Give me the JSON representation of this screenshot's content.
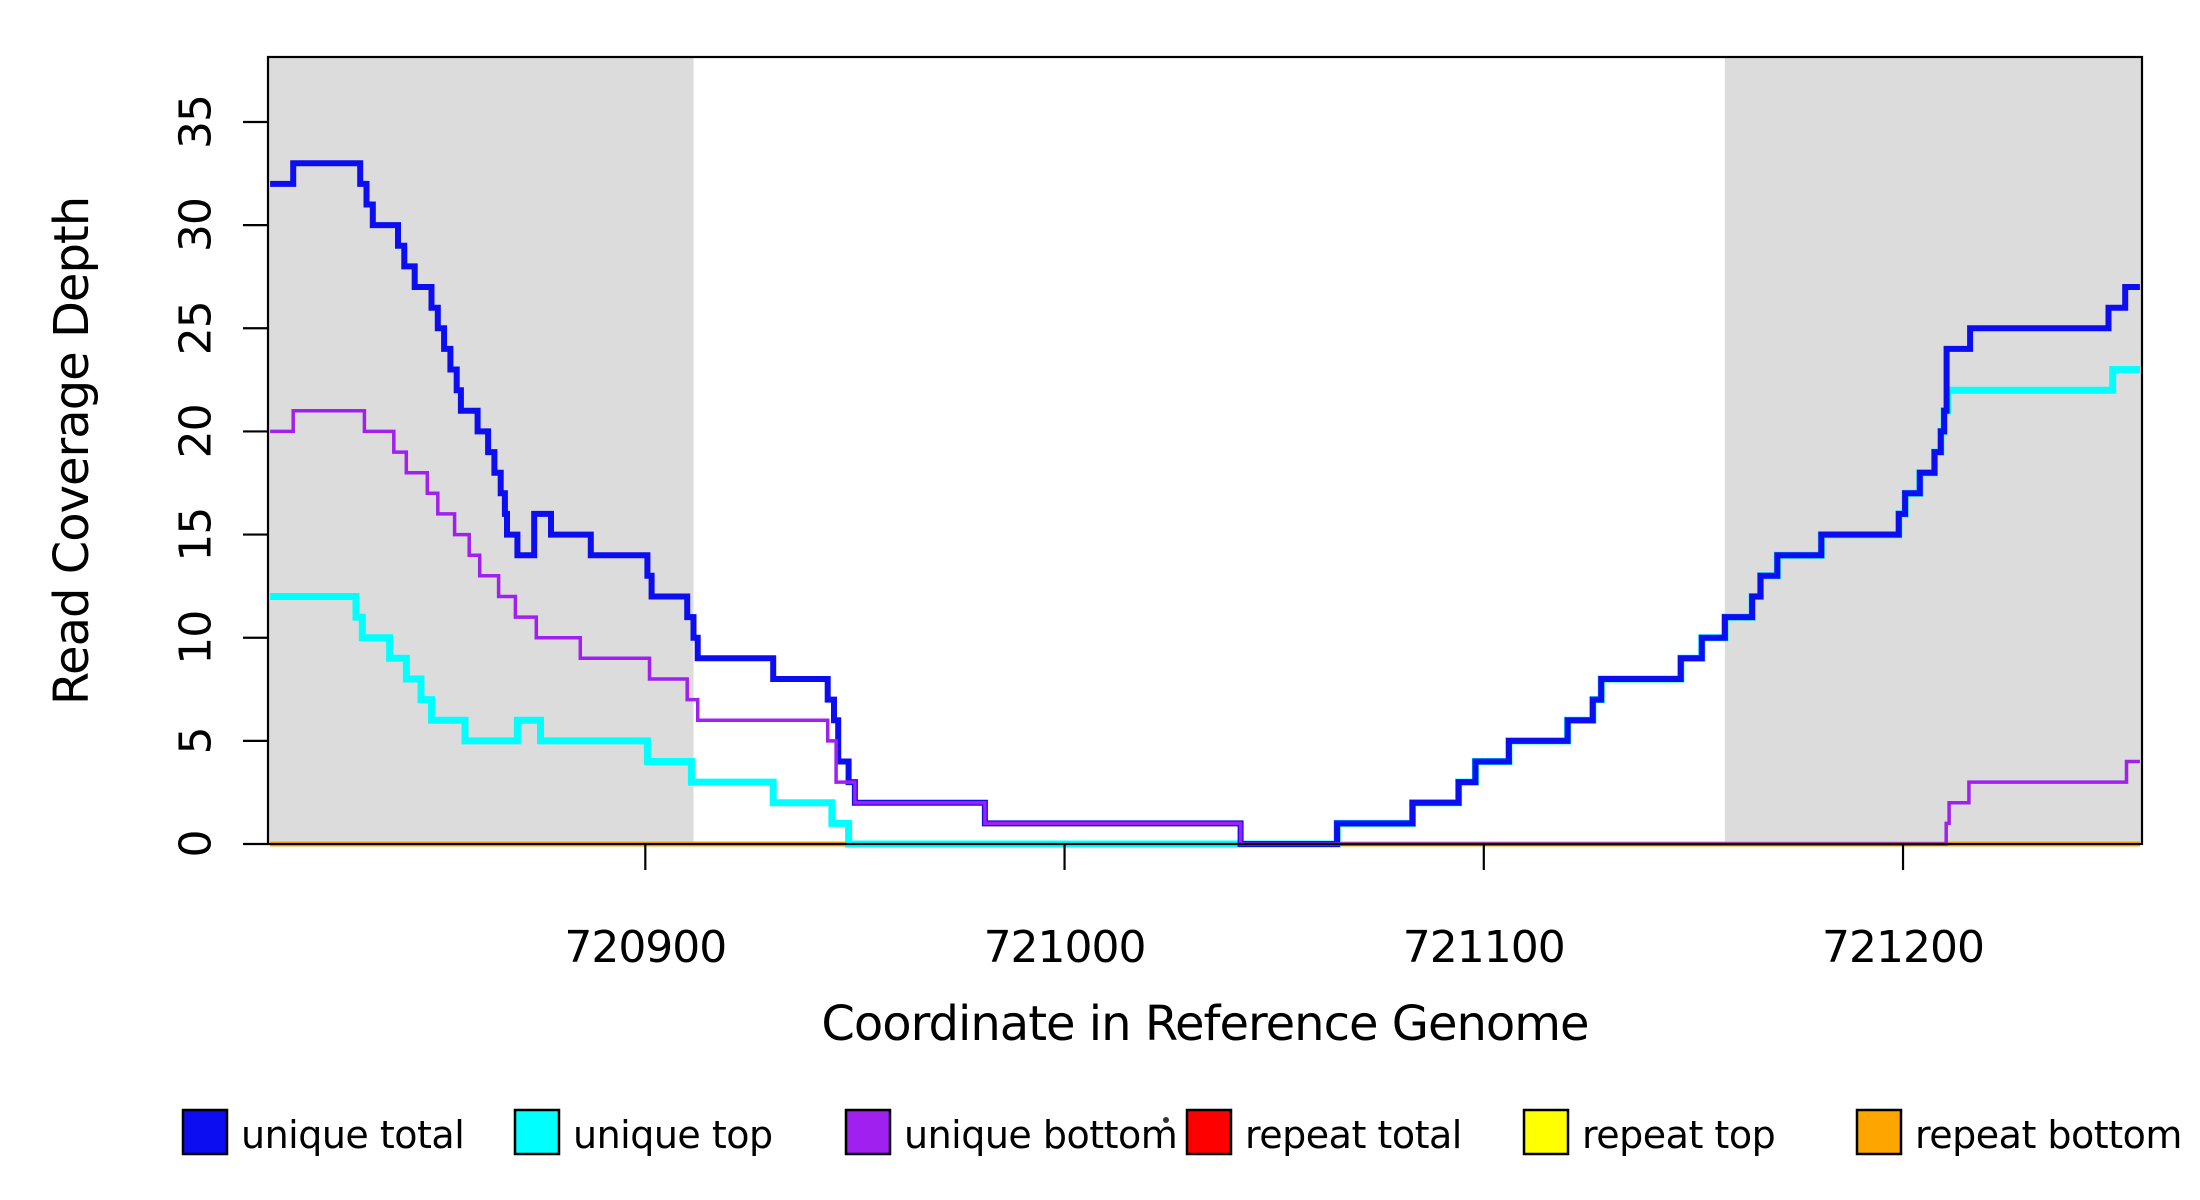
{
  "chart_data": {
    "type": "line",
    "subtype": "step",
    "title": "",
    "xlabel": "Coordinate in Reference Genome",
    "ylabel": "Read Coverage Depth",
    "x_range": {
      "min": 720810,
      "max": 721257
    },
    "y_range": {
      "min": 0,
      "max": 38.2
    },
    "x_ticks": [
      720900,
      721000,
      721100,
      721200
    ],
    "y_ticks": [
      0,
      5,
      10,
      15,
      20,
      25,
      30,
      35
    ],
    "grid": false,
    "legend_position": "bottom",
    "background_color": "#FFFFFF",
    "shaded_regions": [
      {
        "start": 720810,
        "end": 720911.5,
        "color": "#DCDCDC"
      },
      {
        "start": 721157.5,
        "end": 721257,
        "color": "#DCDCDC"
      }
    ],
    "draw_order": [
      "repeat_total",
      "repeat_top",
      "repeat_bottom",
      "unique_top",
      "unique_total",
      "unique_bottom"
    ],
    "series": {
      "unique_total": {
        "label": "unique total",
        "color": "#0D0DF2",
        "line_width": 6,
        "points": [
          [
            720810.5,
            32
          ],
          [
            720816,
            33
          ],
          [
            720832,
            32
          ],
          [
            720833.5,
            31
          ],
          [
            720835,
            30
          ],
          [
            720841,
            29
          ],
          [
            720842.5,
            28
          ],
          [
            720845,
            27
          ],
          [
            720849,
            26
          ],
          [
            720850.5,
            25
          ],
          [
            720852,
            24
          ],
          [
            720853.5,
            23
          ],
          [
            720855,
            22
          ],
          [
            720856,
            21
          ],
          [
            720860,
            20
          ],
          [
            720862.5,
            19
          ],
          [
            720864,
            18
          ],
          [
            720865.5,
            17
          ],
          [
            720866.5,
            16
          ],
          [
            720867,
            15
          ],
          [
            720869.5,
            14
          ],
          [
            720873.5,
            16
          ],
          [
            720877.5,
            15
          ],
          [
            720887,
            14
          ],
          [
            720900.5,
            13
          ],
          [
            720901.5,
            12
          ],
          [
            720910,
            11
          ],
          [
            720911.5,
            10
          ],
          [
            720912.5,
            9
          ],
          [
            720930.5,
            8
          ],
          [
            720943.5,
            7
          ],
          [
            720945,
            6
          ],
          [
            720946,
            4
          ],
          [
            720948.5,
            3
          ],
          [
            720950,
            2
          ],
          [
            720981,
            1
          ],
          [
            721042,
            0
          ],
          [
            721065,
            1
          ],
          [
            721083,
            2
          ],
          [
            721094,
            3
          ],
          [
            721098,
            4
          ],
          [
            721106,
            5
          ],
          [
            721120,
            6
          ],
          [
            721126,
            7
          ],
          [
            721128,
            8
          ],
          [
            721147,
            9
          ],
          [
            721152,
            10
          ],
          [
            721157.5,
            11
          ],
          [
            721164,
            12
          ],
          [
            721166,
            13
          ],
          [
            721170,
            14
          ],
          [
            721180.5,
            15
          ],
          [
            721199,
            16
          ],
          [
            721200.5,
            17
          ],
          [
            721204,
            18
          ],
          [
            721207.5,
            19
          ],
          [
            721209,
            20
          ],
          [
            721209.8,
            21
          ],
          [
            721210.4,
            24
          ],
          [
            721216,
            25
          ],
          [
            721249,
            26
          ],
          [
            721253,
            27
          ],
          [
            721256.5,
            27
          ]
        ]
      },
      "unique_top": {
        "label": "unique top",
        "color": "#00FFFF",
        "line_width": 7,
        "points": [
          [
            720810.5,
            12
          ],
          [
            720831,
            11
          ],
          [
            720832.5,
            10
          ],
          [
            720839,
            9
          ],
          [
            720843,
            8
          ],
          [
            720846.5,
            7
          ],
          [
            720849,
            6
          ],
          [
            720857,
            5
          ],
          [
            720869.5,
            6
          ],
          [
            720875,
            5
          ],
          [
            720900.5,
            4
          ],
          [
            720911,
            3
          ],
          [
            720930.5,
            2
          ],
          [
            720944.5,
            1
          ],
          [
            720948.5,
            0
          ],
          [
            721065,
            1
          ],
          [
            721083,
            2
          ],
          [
            721094,
            3
          ],
          [
            721098,
            4
          ],
          [
            721106,
            5
          ],
          [
            721120,
            6
          ],
          [
            721126,
            7
          ],
          [
            721128,
            8
          ],
          [
            721147,
            9
          ],
          [
            721152,
            10
          ],
          [
            721157.5,
            11
          ],
          [
            721164,
            12
          ],
          [
            721166,
            13
          ],
          [
            721170,
            14
          ],
          [
            721180.5,
            15
          ],
          [
            721199,
            16
          ],
          [
            721200.5,
            17
          ],
          [
            721204,
            18
          ],
          [
            721207.5,
            19
          ],
          [
            721209,
            20
          ],
          [
            721209.8,
            21
          ],
          [
            721210.6,
            22
          ],
          [
            721250,
            23
          ],
          [
            721256.5,
            23
          ]
        ]
      },
      "unique_bottom": {
        "label": "unique bottom",
        "color": "#A020F0",
        "line_width": 3.5,
        "points": [
          [
            720810.5,
            20
          ],
          [
            720816,
            21
          ],
          [
            720833,
            20
          ],
          [
            720840,
            19
          ],
          [
            720843,
            18
          ],
          [
            720848,
            17
          ],
          [
            720850.5,
            16
          ],
          [
            720854.5,
            15
          ],
          [
            720858,
            14
          ],
          [
            720860.5,
            13
          ],
          [
            720865,
            12
          ],
          [
            720869,
            11
          ],
          [
            720874,
            10
          ],
          [
            720884.5,
            9
          ],
          [
            720901,
            8
          ],
          [
            720910,
            7
          ],
          [
            720912.5,
            6
          ],
          [
            720943.5,
            5
          ],
          [
            720945.5,
            3
          ],
          [
            720950,
            2
          ],
          [
            720981,
            1
          ],
          [
            721042,
            0
          ],
          [
            721210.3,
            1
          ],
          [
            721211,
            2
          ],
          [
            721215.7,
            3
          ],
          [
            721253.3,
            4
          ],
          [
            721256.5,
            4
          ]
        ]
      },
      "repeat_total": {
        "label": "repeat total",
        "color": "#FF0000",
        "line_width": 5,
        "points": [
          [
            720810.5,
            0
          ],
          [
            721256.5,
            0
          ]
        ]
      },
      "repeat_top": {
        "label": "repeat top",
        "color": "#FFFF00",
        "line_width": 5,
        "points": [
          [
            720810.5,
            0
          ],
          [
            721256.5,
            0
          ]
        ]
      },
      "repeat_bottom": {
        "label": "repeat bottom",
        "color": "#FFA500",
        "line_width": 5,
        "points": [
          [
            720810.5,
            0
          ],
          [
            721256.5,
            0
          ]
        ]
      }
    },
    "legend": [
      {
        "series": "unique_total",
        "label": "unique total",
        "color": "#0D0DF2"
      },
      {
        "series": "unique_top",
        "label": "unique top",
        "color": "#00FFFF"
      },
      {
        "series": "unique_bottom",
        "label": "unique bottom",
        "color": "#A020F0"
      },
      {
        "series": "repeat_total",
        "label": "repeat total",
        "color": "#FF0000"
      },
      {
        "series": "repeat_top",
        "label": "repeat top",
        "color": "#FFFF00"
      },
      {
        "series": "repeat_bottom",
        "label": "repeat bottom",
        "color": "#FFA500"
      }
    ]
  }
}
